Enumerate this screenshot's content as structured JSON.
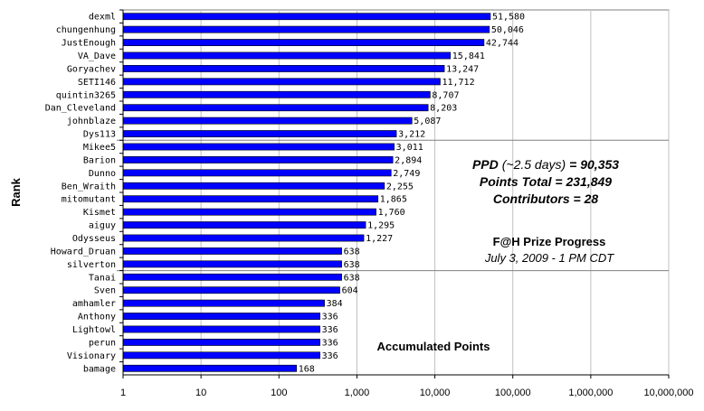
{
  "chart_data": {
    "type": "bar",
    "orientation": "horizontal",
    "title": "",
    "xlabel": "",
    "ylabel": "Rank",
    "x_scale": "log",
    "xlim": [
      1,
      10000000
    ],
    "x_ticks": [
      "1",
      "10",
      "100",
      "1,000",
      "10,000",
      "100,000",
      "1,000,000",
      "10,000,000"
    ],
    "grid": "vertical gridlines at each decade",
    "categories": [
      "dexml",
      "chungenhung",
      "JustEnough",
      "VA_Dave",
      "Goryachev",
      "SETI146",
      "quintin3265",
      "Dan_Cleveland",
      "johnblaze",
      "Dys113",
      "Mikee5",
      "Barion",
      "Dunno",
      "Ben_Wraith",
      "mitomutant",
      "Kismet",
      "aiguy",
      "Odysseus",
      "Howard_Druan",
      "silverton",
      "Tanai",
      "Sven",
      "amhamler",
      "Anthony",
      "Lightowl",
      "perun",
      "Visionary",
      "bamage"
    ],
    "values": [
      51580,
      50046,
      42744,
      15841,
      13247,
      11712,
      8707,
      8203,
      5087,
      3212,
      3011,
      2894,
      2749,
      2255,
      1865,
      1760,
      1295,
      1227,
      638,
      638,
      638,
      604,
      384,
      336,
      336,
      336,
      336,
      168
    ],
    "data_labels": [
      "51,580",
      "50,046",
      "42,744",
      "15,841",
      "13,247",
      "11,712",
      "8,707",
      "8,203",
      "5,087",
      "3,212",
      "3,011",
      "2,894",
      "2,749",
      "2,255",
      "1,865",
      "1,760",
      "1,295",
      "1,227",
      "638",
      "638",
      "638",
      "604",
      "384",
      "336",
      "336",
      "336",
      "336",
      "168"
    ],
    "group_separators_after": [
      9,
      19
    ],
    "bar_color": "#0000ff",
    "annotations": {
      "ppd_label": "PPD",
      "ppd_days": "(~2.5 days)",
      "ppd_value": "= 90,353",
      "points_total": "Points Total = 231,849",
      "contributors": "Contributors = 28",
      "prize_title": "F@H Prize Progress",
      "prize_date": "July 3, 2009 - 1 PM CDT",
      "accumulated": "Accumulated Points"
    }
  }
}
